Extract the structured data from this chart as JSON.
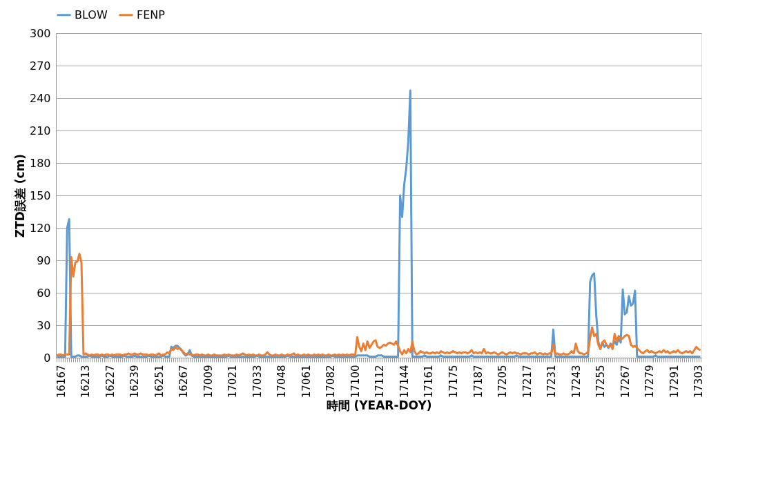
{
  "chart_data": {
    "type": "line",
    "xlabel": "時間 (YEAR-DOY)",
    "ylabel": "ZTD誤差 (cm)",
    "categories": [
      null,
      null,
      "16167",
      null,
      null,
      null,
      null,
      null,
      null,
      null,
      null,
      null,
      null,
      null,
      "16213",
      null,
      null,
      null,
      null,
      null,
      null,
      null,
      null,
      null,
      null,
      null,
      "16227",
      null,
      null,
      null,
      null,
      null,
      null,
      null,
      null,
      null,
      null,
      null,
      "16239",
      null,
      null,
      null,
      null,
      null,
      null,
      null,
      null,
      null,
      null,
      null,
      "16251",
      null,
      null,
      null,
      null,
      null,
      null,
      null,
      null,
      null,
      null,
      null,
      "16267",
      null,
      null,
      null,
      null,
      null,
      null,
      null,
      null,
      null,
      null,
      null,
      "17009",
      null,
      null,
      null,
      null,
      null,
      null,
      null,
      null,
      null,
      null,
      null,
      "17021",
      null,
      null,
      null,
      null,
      null,
      null,
      null,
      null,
      null,
      null,
      null,
      "17033",
      null,
      null,
      null,
      null,
      null,
      null,
      null,
      null,
      null,
      null,
      null,
      "17048",
      null,
      null,
      null,
      null,
      null,
      null,
      null,
      null,
      null,
      null,
      null,
      "17061",
      null,
      null,
      null,
      null,
      null,
      null,
      null,
      null,
      null,
      null,
      null,
      "17082",
      null,
      null,
      null,
      null,
      null,
      null,
      null,
      null,
      null,
      null,
      null,
      "17100",
      null,
      null,
      null,
      null,
      null,
      null,
      null,
      null,
      null,
      null,
      null,
      "17112",
      null,
      null,
      null,
      null,
      null,
      null,
      null,
      null,
      null,
      null,
      null,
      "17144",
      null,
      null,
      null,
      null,
      null,
      null,
      null,
      null,
      null,
      null,
      null,
      "17161",
      null,
      null,
      null,
      null,
      null,
      null,
      null,
      null,
      null,
      null,
      null,
      "17175",
      null,
      null,
      null,
      null,
      null,
      null,
      null,
      null,
      null,
      null,
      null,
      "17187",
      null,
      null,
      null,
      null,
      null,
      null,
      null,
      null,
      null,
      null,
      null,
      "17205",
      null,
      null,
      null,
      null,
      null,
      null,
      null,
      null,
      null,
      null,
      null,
      "17217",
      null,
      null,
      null,
      null,
      null,
      null,
      null,
      null,
      null,
      null,
      null,
      "17231",
      null,
      null,
      null,
      null,
      null,
      null,
      null,
      null,
      null,
      null,
      null,
      "17243",
      null,
      null,
      null,
      null,
      null,
      null,
      null,
      null,
      null,
      null,
      null,
      "17255",
      null,
      null,
      null,
      null,
      null,
      null,
      null,
      null,
      null,
      null,
      null,
      "17267",
      null,
      null,
      null,
      null,
      null,
      null,
      null,
      null,
      null,
      null,
      null,
      "17279",
      null,
      null,
      null,
      null,
      null,
      null,
      null,
      null,
      null,
      null,
      null,
      "17291",
      null,
      null,
      null,
      null,
      null,
      null,
      null,
      null,
      null,
      null,
      null,
      "17303",
      null
    ],
    "series": [
      {
        "name": "BLOW",
        "color": "#5b9bd5",
        "values": [
          1,
          1,
          1,
          1,
          1,
          120,
          128,
          1,
          1,
          1,
          2,
          2,
          1,
          1,
          1,
          1,
          2,
          1,
          1,
          1,
          1,
          1,
          2,
          1,
          1,
          1,
          2,
          1,
          1,
          1,
          1,
          1,
          1,
          2,
          1,
          1,
          1,
          1,
          2,
          1,
          1,
          1,
          1,
          1,
          1,
          2,
          1,
          1,
          1,
          1,
          1,
          1,
          2,
          1,
          1,
          1,
          10,
          9,
          11,
          11,
          9,
          7,
          4,
          2,
          3,
          7,
          2,
          1,
          1,
          1,
          1,
          1,
          1,
          1,
          1,
          1,
          1,
          1,
          1,
          1,
          1,
          1,
          1,
          1,
          2,
          1,
          1,
          1,
          1,
          1,
          1,
          1,
          1,
          1,
          1,
          1,
          1,
          1,
          2,
          1,
          1,
          1,
          1,
          1,
          1,
          1,
          1,
          1,
          1,
          1,
          1,
          1,
          1,
          2,
          1,
          1,
          1,
          1,
          1,
          1,
          1,
          1,
          1,
          1,
          1,
          1,
          1,
          1,
          1,
          1,
          1,
          1,
          1,
          1,
          1,
          2,
          1,
          1,
          1,
          1,
          1,
          1,
          1,
          1,
          1,
          1,
          1,
          2,
          2,
          2,
          2,
          2,
          2,
          1,
          1,
          1,
          1,
          2,
          2,
          2,
          1,
          1,
          1,
          1,
          1,
          1,
          1,
          1,
          150,
          130,
          160,
          175,
          200,
          247,
          1,
          1,
          1,
          1,
          1,
          1,
          2,
          1,
          1,
          1,
          1,
          1,
          1,
          1,
          2,
          1,
          1,
          1,
          1,
          1,
          1,
          1,
          1,
          1,
          1,
          1,
          1,
          1,
          1,
          2,
          1,
          1,
          1,
          1,
          1,
          1,
          1,
          1,
          1,
          1,
          1,
          1,
          1,
          1,
          1,
          1,
          1,
          1,
          1,
          1,
          1,
          2,
          1,
          1,
          1,
          1,
          1,
          1,
          1,
          1,
          1,
          1,
          1,
          1,
          1,
          1,
          1,
          1,
          1,
          26,
          1,
          1,
          1,
          1,
          1,
          1,
          1,
          1,
          1,
          1,
          1,
          1,
          1,
          1,
          1,
          1,
          1,
          70,
          76,
          78,
          40,
          15,
          8,
          14,
          10,
          12,
          9,
          13,
          11,
          15,
          12,
          18,
          14,
          63,
          40,
          42,
          57,
          48,
          50,
          62,
          1,
          1,
          1,
          1,
          1,
          1,
          1,
          1,
          1,
          2,
          1,
          1,
          1,
          1,
          1,
          1,
          1,
          1,
          1,
          1,
          1,
          1,
          1,
          1,
          1,
          1,
          1,
          1,
          1,
          1,
          1,
          1
        ]
      },
      {
        "name": "FENP",
        "color": "#ed7d31",
        "values": [
          2,
          3,
          3,
          2,
          3,
          3,
          3,
          93,
          75,
          88,
          89,
          96,
          88,
          3,
          4,
          3,
          2,
          3,
          2,
          3,
          3,
          2,
          3,
          2,
          3,
          3,
          2,
          3,
          2,
          3,
          3,
          3,
          2,
          3,
          3,
          4,
          3,
          3,
          4,
          3,
          3,
          4,
          3,
          3,
          3,
          2,
          3,
          3,
          2,
          3,
          4,
          2,
          3,
          3,
          5,
          4,
          8,
          7,
          10,
          8,
          9,
          7,
          5,
          3,
          4,
          3,
          3,
          2,
          3,
          3,
          2,
          3,
          2,
          2,
          3,
          2,
          2,
          3,
          2,
          2,
          2,
          2,
          3,
          2,
          3,
          2,
          2,
          2,
          3,
          2,
          3,
          4,
          3,
          2,
          3,
          2,
          3,
          2,
          2,
          3,
          2,
          2,
          3,
          5,
          3,
          2,
          2,
          3,
          2,
          2,
          3,
          2,
          2,
          3,
          2,
          3,
          4,
          2,
          3,
          2,
          2,
          3,
          2,
          3,
          2,
          2,
          3,
          2,
          3,
          2,
          3,
          2,
          2,
          3,
          2,
          2,
          3,
          2,
          3,
          2,
          3,
          2,
          3,
          2,
          3,
          3,
          2,
          19,
          10,
          6,
          13,
          7,
          15,
          9,
          12,
          15,
          16,
          10,
          9,
          10,
          12,
          11,
          13,
          14,
          13,
          12,
          15,
          11,
          6,
          3,
          7,
          4,
          8,
          5,
          15,
          6,
          3,
          4,
          6,
          5,
          4,
          5,
          4,
          4,
          5,
          4,
          5,
          4,
          6,
          5,
          4,
          5,
          4,
          5,
          6,
          5,
          4,
          5,
          4,
          5,
          5,
          4,
          5,
          7,
          4,
          5,
          4,
          5,
          4,
          8,
          4,
          5,
          4,
          4,
          5,
          4,
          3,
          4,
          5,
          4,
          3,
          4,
          5,
          4,
          5,
          4,
          4,
          3,
          4,
          4,
          4,
          3,
          4,
          4,
          5,
          3,
          4,
          4,
          3,
          4,
          3,
          4,
          4,
          12,
          3,
          4,
          3,
          3,
          4,
          3,
          3,
          4,
          6,
          4,
          13,
          6,
          4,
          4,
          3,
          4,
          5,
          18,
          28,
          20,
          22,
          12,
          8,
          14,
          16,
          12,
          10,
          12,
          8,
          22,
          15,
          20,
          17,
          18,
          20,
          21,
          20,
          12,
          10,
          11,
          9,
          7,
          5,
          4,
          6,
          7,
          5,
          6,
          5,
          4,
          5,
          6,
          5,
          7,
          5,
          6,
          4,
          5,
          6,
          5,
          7,
          5,
          4,
          5,
          6,
          5,
          6,
          4,
          7,
          10,
          8,
          7
        ]
      }
    ],
    "ylim": [
      0,
      300
    ],
    "yticks": [
      0,
      30,
      60,
      90,
      120,
      150,
      180,
      210,
      240,
      270,
      300
    ],
    "grid": "y",
    "legend": "top"
  }
}
